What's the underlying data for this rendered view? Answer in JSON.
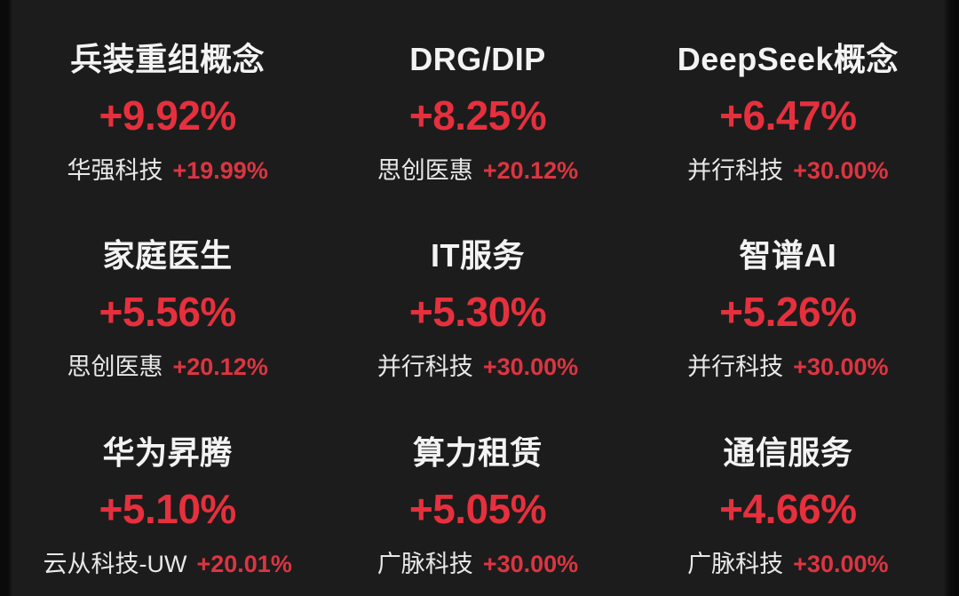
{
  "board": {
    "background_color": "#1d1c1c",
    "edge_color": "#0a0a0b",
    "sector_change_up_color": "#e6303d",
    "leader_change_up_color": "#dc3541",
    "sector_name_color": "#f3f3f3",
    "leader_name_color": "#e8e8e8",
    "sectors": [
      {
        "name": "兵装重组概念",
        "change": "+9.92%",
        "leader_name": "华强科技",
        "leader_change": "+19.99%"
      },
      {
        "name": "DRG/DIP",
        "change": "+8.25%",
        "leader_name": "思创医惠",
        "leader_change": "+20.12%"
      },
      {
        "name": "DeepSeek概念",
        "change": "+6.47%",
        "leader_name": "并行科技",
        "leader_change": "+30.00%"
      },
      {
        "name": "家庭医生",
        "change": "+5.56%",
        "leader_name": "思创医惠",
        "leader_change": "+20.12%"
      },
      {
        "name": "IT服务",
        "change": "+5.30%",
        "leader_name": "并行科技",
        "leader_change": "+30.00%"
      },
      {
        "name": "智谱AI",
        "change": "+5.26%",
        "leader_name": "并行科技",
        "leader_change": "+30.00%"
      },
      {
        "name": "华为昇腾",
        "change": "+5.10%",
        "leader_name": "云从科技-UW",
        "leader_change": "+20.01%"
      },
      {
        "name": "算力租赁",
        "change": "+5.05%",
        "leader_name": "广脉科技",
        "leader_change": "+30.00%"
      },
      {
        "name": "通信服务",
        "change": "+4.66%",
        "leader_name": "广脉科技",
        "leader_change": "+30.00%"
      }
    ]
  }
}
